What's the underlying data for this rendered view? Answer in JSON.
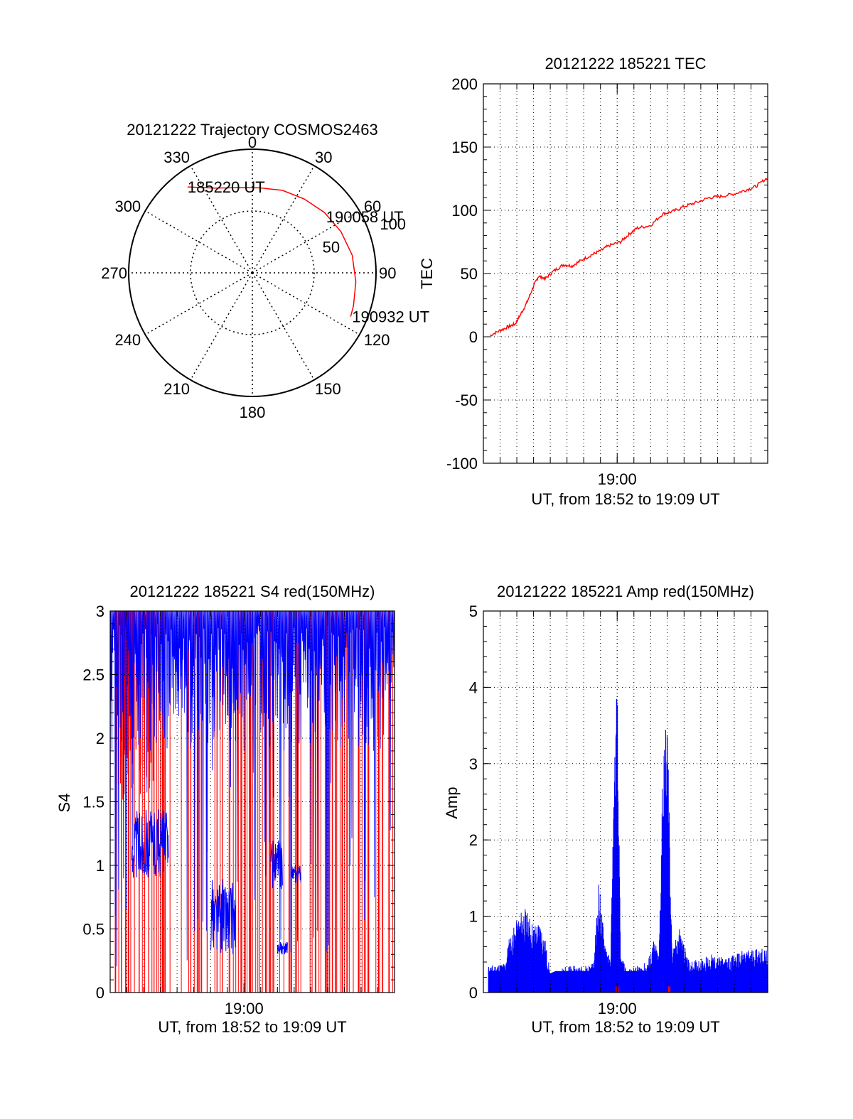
{
  "colors": {
    "trace": "#ff0000",
    "signal": "#0000ff",
    "axis": "#000000",
    "grid": "#000000"
  },
  "chart_data": [
    {
      "type": "polar",
      "title": "20121222 Trajectory COSMOS2463",
      "angle_labels": [
        "0",
        "30",
        "60",
        "90",
        "120",
        "150",
        "180",
        "210",
        "240",
        "270",
        "300",
        "330"
      ],
      "radius_labels": [
        "50",
        "100"
      ],
      "rlim": [
        0,
        100
      ],
      "track": {
        "points": [
          {
            "az": 323,
            "r": 87
          },
          {
            "az": 336,
            "r": 75
          },
          {
            "az": 350,
            "r": 70
          },
          {
            "az": 5,
            "r": 69
          },
          {
            "az": 20,
            "r": 71
          },
          {
            "az": 35,
            "r": 73
          },
          {
            "az": 50,
            "r": 76
          },
          {
            "az": 65,
            "r": 79
          },
          {
            "az": 80,
            "r": 82
          },
          {
            "az": 95,
            "r": 84
          },
          {
            "az": 108,
            "r": 86
          },
          {
            "az": 114,
            "r": 87
          }
        ],
        "labels": [
          {
            "text": "185220 UT",
            "az": 323,
            "r": 87
          },
          {
            "text": "190058 UT",
            "az": 55,
            "r": 77
          },
          {
            "text": "190932 UT",
            "az": 114,
            "r": 87
          }
        ]
      }
    },
    {
      "type": "line",
      "title": "20121222 185221 TEC",
      "xlabel": "UT, from 18:52 to 19:09 UT",
      "ylabel": "TEC",
      "x_range_minutes": [
        0,
        17
      ],
      "x_ticks": [
        {
          "minute": 8,
          "label": "19:00"
        }
      ],
      "ylim": [
        -100,
        200
      ],
      "y_ticks": [
        "200",
        "150",
        "100",
        "50",
        "0",
        "-50",
        "-100"
      ],
      "grid": true,
      "series": [
        {
          "color": "#ff0000",
          "x": [
            0.4,
            1.0,
            1.5,
            1.9,
            2.2,
            2.6,
            3.0,
            3.3,
            3.7,
            4.2,
            4.8,
            5.3,
            5.8,
            6.5,
            7.0,
            7.5,
            8.2,
            8.7,
            9.2,
            10.0,
            10.7,
            11.3,
            12.0,
            12.7,
            13.5,
            14.2,
            15.0,
            15.7,
            16.3,
            17.0
          ],
          "y": [
            1,
            5,
            8,
            10,
            17,
            27,
            40,
            48,
            46,
            52,
            57,
            56,
            60,
            65,
            68,
            72,
            75,
            81,
            86,
            88,
            97,
            99,
            103,
            106,
            110,
            111,
            113,
            116,
            119,
            126
          ]
        }
      ]
    },
    {
      "type": "line",
      "title": "20121222 185221 S4 red(150MHz)",
      "xlabel": "UT, from 18:52 to 19:09 UT",
      "ylabel": "S4",
      "x_range_minutes": [
        0,
        17
      ],
      "x_ticks": [
        {
          "minute": 8,
          "label": "19:00"
        }
      ],
      "ylim": [
        0,
        3
      ],
      "y_ticks": [
        "3",
        "2.5",
        "2",
        "1.5",
        "1",
        "0.5",
        "0"
      ],
      "grid": true,
      "series": [
        {
          "name": "",
          "color": "#0000ff",
          "segments": [
            {
              "x0": 1.3,
              "x1": 3.5,
              "ymin": 0.9,
              "ymax": 1.45
            },
            {
              "x0": 6.0,
              "x1": 7.5,
              "ymin": 0.3,
              "ymax": 0.9
            },
            {
              "x0": 9.6,
              "x1": 10.3,
              "ymin": 0.8,
              "ymax": 1.2
            },
            {
              "x0": 10.8,
              "x1": 11.4,
              "ymin": 0.85,
              "ymax": 1.0
            },
            {
              "x0": 10.0,
              "x1": 10.6,
              "ymin": 0.3,
              "ymax": 0.4
            }
          ]
        },
        {
          "name": "",
          "color": "#ff0000",
          "note_spikes": "dense vertical spikes from 0 to 3"
        }
      ]
    },
    {
      "type": "bar",
      "title": "20121222 185221 Amp red(150MHz)",
      "xlabel": "UT, from 18:52 to 19:09 UT",
      "ylabel": "Amp",
      "x_range_minutes": [
        0,
        17
      ],
      "x_ticks": [
        {
          "minute": 8,
          "label": "19:00"
        }
      ],
      "ylim": [
        0,
        5
      ],
      "y_ticks": [
        "5",
        "4",
        "3",
        "2",
        "1",
        "0"
      ],
      "grid": true,
      "envelope": {
        "color": "#0000ff",
        "x": [
          0.3,
          1.3,
          1.5,
          2.0,
          2.4,
          3.0,
          3.4,
          3.7,
          4.0,
          5.0,
          6.0,
          6.6,
          6.9,
          7.2,
          7.6,
          7.8,
          8.0,
          8.2,
          8.6,
          9.2,
          9.8,
          10.2,
          10.5,
          10.7,
          11.0,
          11.3,
          11.7,
          12.3,
          13.0,
          13.6,
          14.5,
          15.5,
          16.5,
          17.0
        ],
        "y": [
          0.35,
          0.4,
          0.7,
          0.95,
          1.15,
          0.9,
          0.95,
          0.7,
          0.25,
          0.35,
          0.35,
          0.4,
          1.5,
          0.8,
          0.4,
          2.8,
          4.25,
          0.5,
          0.3,
          0.35,
          0.4,
          0.7,
          0.5,
          3.0,
          3.8,
          0.5,
          0.9,
          0.4,
          0.45,
          0.5,
          0.45,
          0.55,
          0.6,
          0.55
        ]
      },
      "red_marks_minutes": [
        8.0,
        11.1
      ]
    }
  ]
}
